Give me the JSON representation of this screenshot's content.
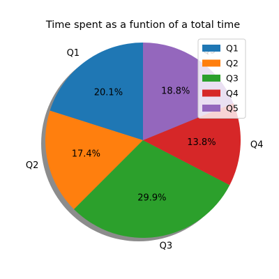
{
  "chart_data": {
    "type": "pie",
    "title": "Time spent as a funtion of a total time",
    "slices": [
      {
        "label": "Q1",
        "value": 20.1,
        "pct_label": "20.1%",
        "color": "#1f77b4"
      },
      {
        "label": "Q2",
        "value": 17.4,
        "pct_label": "17.4%",
        "color": "#ff7f0e"
      },
      {
        "label": "Q3",
        "value": 29.9,
        "pct_label": "29.9%",
        "color": "#2ca02c"
      },
      {
        "label": "Q4",
        "value": 13.8,
        "pct_label": "13.8%",
        "color": "#d62728"
      },
      {
        "label": "Q5",
        "value": 18.8,
        "pct_label": "18.8%",
        "color": "#9467bd"
      }
    ],
    "start_angle_deg": 90,
    "direction": "counterclockwise",
    "shadow": true,
    "legend": {
      "placement": "top-right",
      "entries": [
        "Q1",
        "Q2",
        "Q3",
        "Q4",
        "Q5"
      ]
    }
  }
}
